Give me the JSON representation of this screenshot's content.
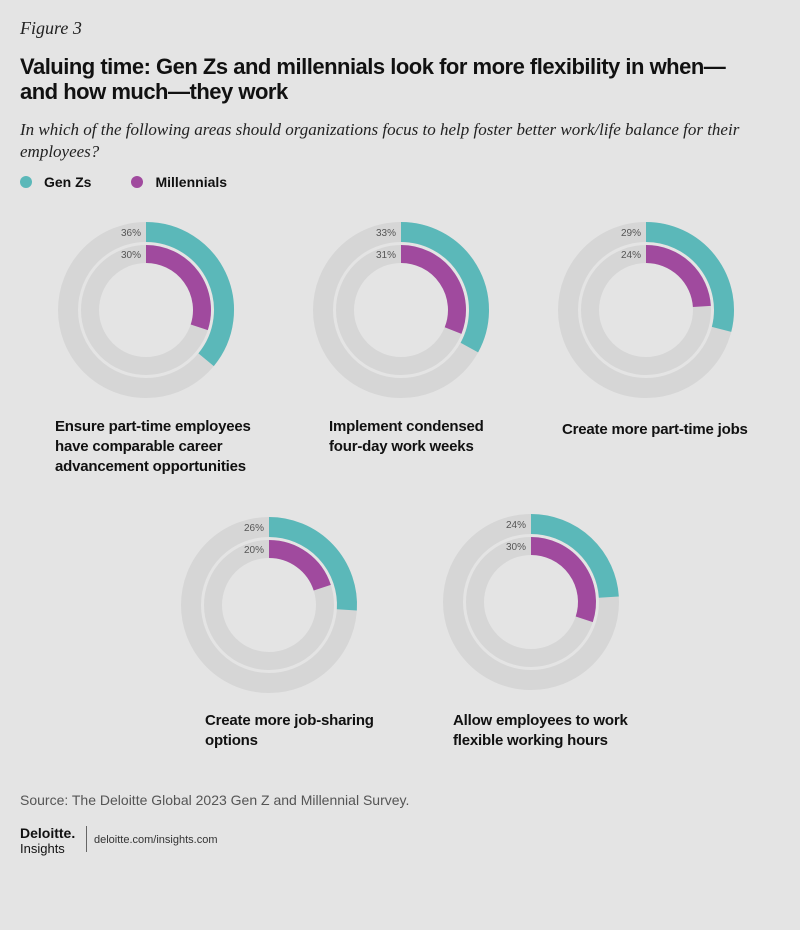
{
  "figure_label": "Figure 3",
  "title": "Valuing time: Gen Zs and millennials look for more flexibility in when—and how much—they work",
  "question": "In which of the following areas should organizations focus to help foster better work/life balance for their employees?",
  "legend": [
    {
      "name": "Gen Zs",
      "color": "#5bb8b9"
    },
    {
      "name": "Millennials",
      "color": "#a04a9e"
    }
  ],
  "colors": {
    "track": "#d6d6d6",
    "gen_z": "#5bb8b9",
    "millennials": "#a04a9e"
  },
  "chart_data": {
    "type": "donut",
    "series": [
      {
        "name": "Gen Zs",
        "values": [
          36,
          33,
          29,
          26,
          24
        ]
      },
      {
        "name": "Millennials",
        "values": [
          30,
          31,
          24,
          20,
          30
        ]
      }
    ],
    "categories": [
      "Ensure part-time employees have comparable career advancement opportunities",
      "Implement condensed four-day work weeks",
      "Create more part-time jobs",
      "Create more job-sharing options",
      "Allow employees to work flexible working hours"
    ],
    "value_labels": {
      "gen_z": [
        "36%",
        "33%",
        "29%",
        "26%",
        "24%"
      ],
      "millennials": [
        "30%",
        "31%",
        "24%",
        "20%",
        "30%"
      ]
    }
  },
  "label_lines": [
    [
      "Ensure part-time employees",
      "have comparable career",
      "advancement opportunities"
    ],
    [
      "Implement condensed",
      "four-day work weeks"
    ],
    [
      "Create more part-time jobs"
    ],
    [
      "Create more job-sharing",
      "options"
    ],
    [
      "Allow employees to work",
      "flexible working hours"
    ]
  ],
  "source": "Source: The Deloitte Global 2023 Gen Z and Millennial Survey.",
  "brand": {
    "name": "Deloitte.",
    "sub": "Insights",
    "url": "deloitte.com/insights.com"
  }
}
